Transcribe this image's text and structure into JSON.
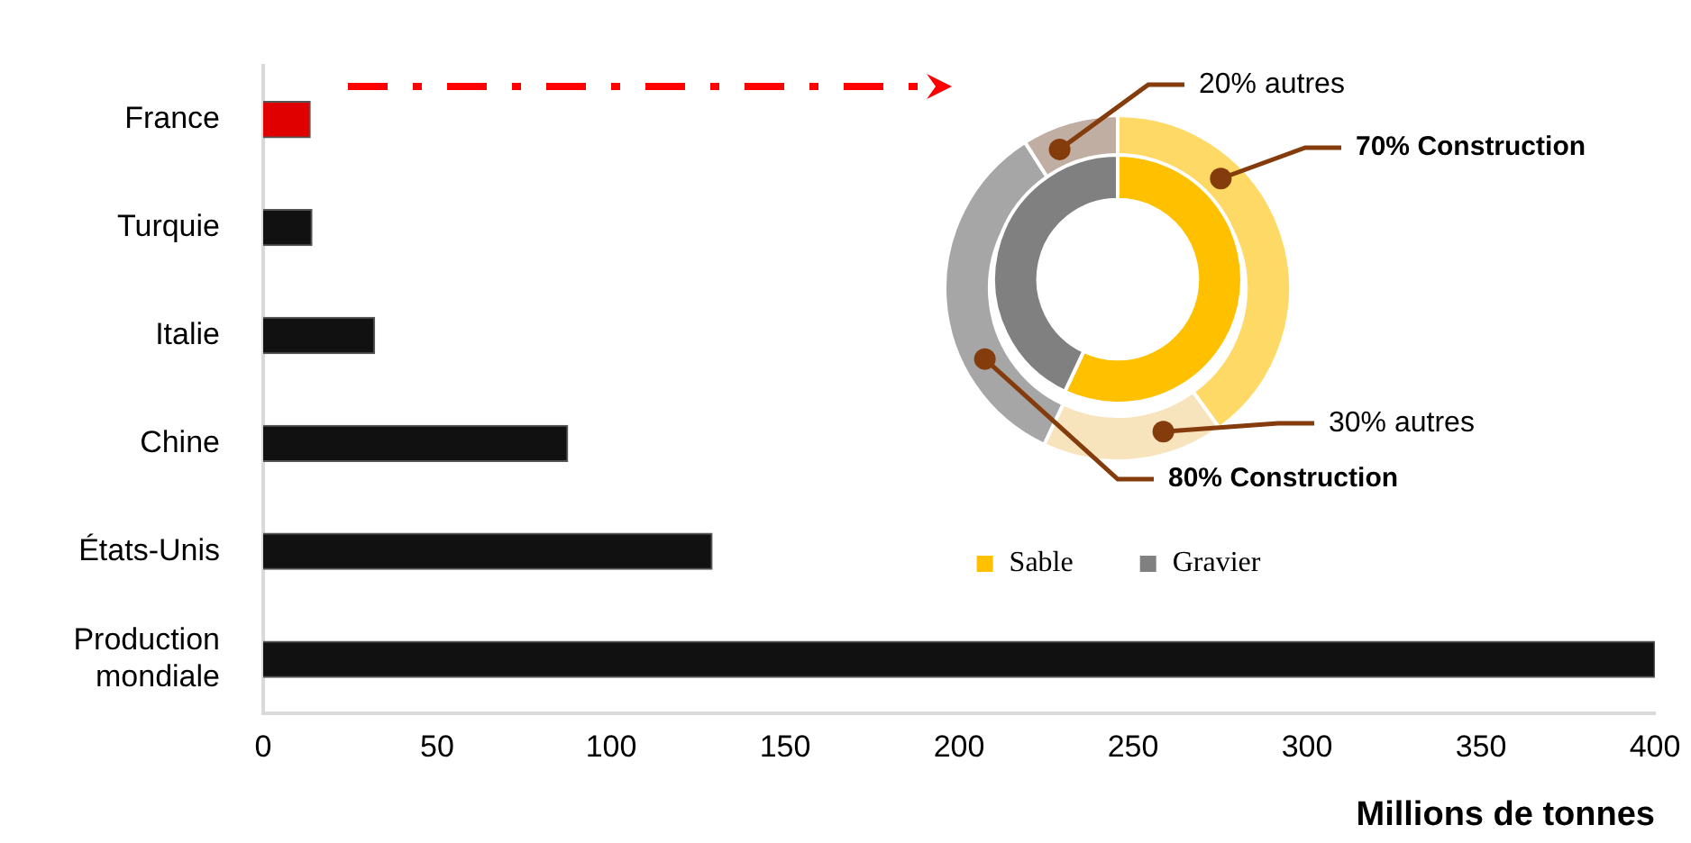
{
  "chart_data": [
    {
      "type": "bar",
      "orientation": "horizontal",
      "categories": [
        "France",
        "Turquie",
        "Italie",
        "Chine",
        "États-Unis",
        "Production mondiale"
      ],
      "values": [
        13.5,
        14,
        32,
        87.5,
        129,
        400
      ],
      "colors": [
        "#e00000",
        "#111111",
        "#111111",
        "#111111",
        "#111111",
        "#111111"
      ],
      "xlabel": "Millions de tonnes",
      "xlim": [
        0,
        400
      ],
      "xticks": [
        0,
        50,
        100,
        150,
        200,
        250,
        300,
        350,
        400
      ],
      "grid": false,
      "legend": false
    },
    {
      "type": "donut",
      "categories": [
        "70% Construction",
        "30% autres",
        "80% Construction",
        "20% autres"
      ],
      "values": [
        40,
        17,
        34,
        9
      ],
      "colors": [
        "#ffd966",
        "#f8e4bc",
        "#a6a6a6",
        "#c0aea3"
      ]
    },
    {
      "type": "donut",
      "categories": [
        "Sable",
        "Gravier"
      ],
      "values": [
        57,
        43
      ],
      "colors": [
        "#ffc000",
        "#808080"
      ],
      "legend": "bottom"
    }
  ]
}
